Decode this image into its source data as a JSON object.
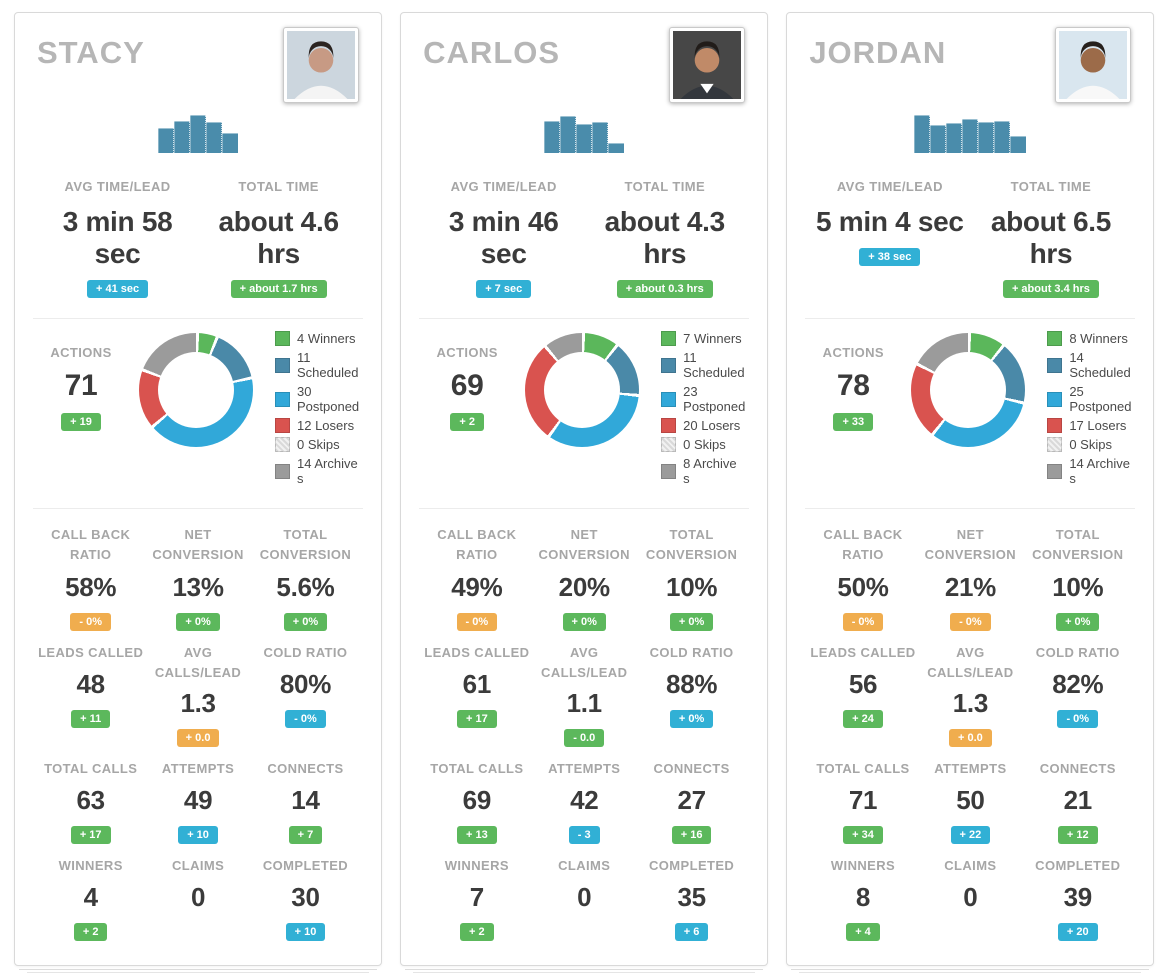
{
  "colors": {
    "badge_green": "#5cb85c",
    "badge_blue": "#31b0d5",
    "badge_orange": "#f0ad4e",
    "bar": "#4a8cab",
    "winners": "#5bb75b",
    "scheduled": "#4a89a8",
    "postponed": "#31a8d9",
    "losers": "#d9534f",
    "skips": "#e4e4e4",
    "archives": "#9b9b9b"
  },
  "labels": {
    "avg_time": "AVG TIME/LEAD",
    "total_time": "TOTAL TIME",
    "actions": "ACTIONS"
  },
  "people": [
    {
      "name": "STACY",
      "avatar": {
        "bg": "#ccd6de",
        "hair": "#2b2421",
        "skin": "#c79a84",
        "shirt": "#f4f4f4",
        "collar": false
      },
      "avg_time_lead": {
        "value": "3 min 58 sec",
        "badge": "+ 41 sec",
        "badge_color": "blue"
      },
      "total_time": {
        "value": "about 4.6 hrs",
        "badge": "+ about 1.7 hrs",
        "badge_color": "green"
      },
      "actions": {
        "value": "71",
        "badge": "+ 19",
        "badge_color": "green"
      },
      "grid": [
        {
          "key": "call-back-ratio",
          "label": "CALL BACK RATIO",
          "value": "58%",
          "badge": "- 0%",
          "badge_color": "orange"
        },
        {
          "key": "net-conversion",
          "label": "NET CONVERSION",
          "value": "13%",
          "badge": "+ 0%",
          "badge_color": "green"
        },
        {
          "key": "total-conversion",
          "label": "TOTAL CONVERSION",
          "value": "5.6%",
          "badge": "+ 0%",
          "badge_color": "green"
        },
        {
          "key": "leads-called",
          "label": "LEADS CALLED",
          "value": "48",
          "badge": "+ 11",
          "badge_color": "green"
        },
        {
          "key": "avg-calls-lead",
          "label": "AVG CALLS/LEAD",
          "value": "1.3",
          "badge": "+ 0.0",
          "badge_color": "orange"
        },
        {
          "key": "cold-ratio",
          "label": "COLD RATIO",
          "value": "80%",
          "badge": "- 0%",
          "badge_color": "blue"
        },
        {
          "key": "total-calls",
          "label": "TOTAL CALLS",
          "value": "63",
          "badge": "+ 17",
          "badge_color": "green"
        },
        {
          "key": "attempts",
          "label": "ATTEMPTS",
          "value": "49",
          "badge": "+ 10",
          "badge_color": "blue"
        },
        {
          "key": "connects",
          "label": "CONNECTS",
          "value": "14",
          "badge": "+ 7",
          "badge_color": "green"
        },
        {
          "key": "winners",
          "label": "WINNERS",
          "value": "4",
          "badge": "+ 2",
          "badge_color": "green"
        },
        {
          "key": "claims",
          "label": "CLAIMS",
          "value": "0",
          "badge": "",
          "badge_color": ""
        },
        {
          "key": "completed",
          "label": "COMPLETED",
          "value": "30",
          "badge": "+ 10",
          "badge_color": "blue"
        }
      ]
    },
    {
      "name": "CARLOS",
      "avatar": {
        "bg": "#474747",
        "hair": "#211c19",
        "skin": "#c08a68",
        "shirt": "#33373d",
        "collar": true
      },
      "avg_time_lead": {
        "value": "3 min 46 sec",
        "badge": "+ 7 sec",
        "badge_color": "blue"
      },
      "total_time": {
        "value": "about 4.3 hrs",
        "badge": "+ about 0.3 hrs",
        "badge_color": "green"
      },
      "actions": {
        "value": "69",
        "badge": "+ 2",
        "badge_color": "green"
      },
      "grid": [
        {
          "key": "call-back-ratio",
          "label": "CALL BACK RATIO",
          "value": "49%",
          "badge": "- 0%",
          "badge_color": "orange"
        },
        {
          "key": "net-conversion",
          "label": "NET CONVERSION",
          "value": "20%",
          "badge": "+ 0%",
          "badge_color": "green"
        },
        {
          "key": "total-conversion",
          "label": "TOTAL CONVERSION",
          "value": "10%",
          "badge": "+ 0%",
          "badge_color": "green"
        },
        {
          "key": "leads-called",
          "label": "LEADS CALLED",
          "value": "61",
          "badge": "+ 17",
          "badge_color": "green"
        },
        {
          "key": "avg-calls-lead",
          "label": "AVG CALLS/LEAD",
          "value": "1.1",
          "badge": "- 0.0",
          "badge_color": "green"
        },
        {
          "key": "cold-ratio",
          "label": "COLD RATIO",
          "value": "88%",
          "badge": "+ 0%",
          "badge_color": "blue"
        },
        {
          "key": "total-calls",
          "label": "TOTAL CALLS",
          "value": "69",
          "badge": "+ 13",
          "badge_color": "green"
        },
        {
          "key": "attempts",
          "label": "ATTEMPTS",
          "value": "42",
          "badge": "- 3",
          "badge_color": "blue"
        },
        {
          "key": "connects",
          "label": "CONNECTS",
          "value": "27",
          "badge": "+ 16",
          "badge_color": "green"
        },
        {
          "key": "winners",
          "label": "WINNERS",
          "value": "7",
          "badge": "+ 2",
          "badge_color": "green"
        },
        {
          "key": "claims",
          "label": "CLAIMS",
          "value": "0",
          "badge": "",
          "badge_color": ""
        },
        {
          "key": "completed",
          "label": "COMPLETED",
          "value": "35",
          "badge": "+ 6",
          "badge_color": "blue"
        }
      ]
    },
    {
      "name": "JORDAN",
      "avatar": {
        "bg": "#d9e6ef",
        "hair": "#26201c",
        "skin": "#9c6b49",
        "shirt": "#f8f8f8",
        "collar": false
      },
      "avg_time_lead": {
        "value": "5 min 4 sec",
        "badge": "+ 38 sec",
        "badge_color": "blue"
      },
      "total_time": {
        "value": "about 6.5 hrs",
        "badge": "+ about 3.4 hrs",
        "badge_color": "green"
      },
      "actions": {
        "value": "78",
        "badge": "+ 33",
        "badge_color": "green"
      },
      "grid": [
        {
          "key": "call-back-ratio",
          "label": "CALL BACK RATIO",
          "value": "50%",
          "badge": "- 0%",
          "badge_color": "orange"
        },
        {
          "key": "net-conversion",
          "label": "NET CONVERSION",
          "value": "21%",
          "badge": "- 0%",
          "badge_color": "orange"
        },
        {
          "key": "total-conversion",
          "label": "TOTAL CONVERSION",
          "value": "10%",
          "badge": "+ 0%",
          "badge_color": "green"
        },
        {
          "key": "leads-called",
          "label": "LEADS CALLED",
          "value": "56",
          "badge": "+ 24",
          "badge_color": "green"
        },
        {
          "key": "avg-calls-lead",
          "label": "AVG CALLS/LEAD",
          "value": "1.3",
          "badge": "+ 0.0",
          "badge_color": "orange"
        },
        {
          "key": "cold-ratio",
          "label": "COLD RATIO",
          "value": "82%",
          "badge": "- 0%",
          "badge_color": "blue"
        },
        {
          "key": "total-calls",
          "label": "TOTAL CALLS",
          "value": "71",
          "badge": "+ 34",
          "badge_color": "green"
        },
        {
          "key": "attempts",
          "label": "ATTEMPTS",
          "value": "50",
          "badge": "+ 22",
          "badge_color": "blue"
        },
        {
          "key": "connects",
          "label": "CONNECTS",
          "value": "21",
          "badge": "+ 12",
          "badge_color": "green"
        },
        {
          "key": "winners",
          "label": "WINNERS",
          "value": "8",
          "badge": "+ 4",
          "badge_color": "green"
        },
        {
          "key": "claims",
          "label": "CLAIMS",
          "value": "0",
          "badge": "",
          "badge_color": ""
        },
        {
          "key": "completed",
          "label": "COMPLETED",
          "value": "39",
          "badge": "+ 20",
          "badge_color": "blue"
        }
      ]
    }
  ],
  "chart_data": [
    {
      "type": "bar",
      "owner": "STACY",
      "values": [
        62,
        80,
        95,
        78,
        50
      ],
      "color": "bar"
    },
    {
      "type": "pie",
      "owner": "STACY",
      "segments": [
        {
          "label": "Winners",
          "value": 4,
          "color": "winners"
        },
        {
          "label": "Scheduled",
          "value": 11,
          "color": "scheduled"
        },
        {
          "label": "Postponed",
          "value": 30,
          "color": "postponed"
        },
        {
          "label": "Losers",
          "value": 12,
          "color": "losers"
        },
        {
          "label": "Skips",
          "value": 0,
          "color": "skips"
        },
        {
          "label": "Archive s",
          "value": 14,
          "color": "archives"
        }
      ]
    },
    {
      "type": "bar",
      "owner": "CARLOS",
      "values": [
        80,
        92,
        72,
        78,
        25
      ],
      "color": "bar"
    },
    {
      "type": "pie",
      "owner": "CARLOS",
      "segments": [
        {
          "label": "Winners",
          "value": 7,
          "color": "winners"
        },
        {
          "label": "Scheduled",
          "value": 11,
          "color": "scheduled"
        },
        {
          "label": "Postponed",
          "value": 23,
          "color": "postponed"
        },
        {
          "label": "Losers",
          "value": 20,
          "color": "losers"
        },
        {
          "label": "Skips",
          "value": 0,
          "color": "skips"
        },
        {
          "label": "Archive s",
          "value": 8,
          "color": "archives"
        }
      ]
    },
    {
      "type": "bar",
      "owner": "JORDAN",
      "values": [
        95,
        70,
        75,
        85,
        78,
        80,
        42
      ],
      "color": "bar"
    },
    {
      "type": "pie",
      "owner": "JORDAN",
      "segments": [
        {
          "label": "Winners",
          "value": 8,
          "color": "winners"
        },
        {
          "label": "Scheduled",
          "value": 14,
          "color": "scheduled"
        },
        {
          "label": "Postponed",
          "value": 25,
          "color": "postponed"
        },
        {
          "label": "Losers",
          "value": 17,
          "color": "losers"
        },
        {
          "label": "Skips",
          "value": 0,
          "color": "skips"
        },
        {
          "label": "Archive s",
          "value": 14,
          "color": "archives"
        }
      ]
    }
  ]
}
